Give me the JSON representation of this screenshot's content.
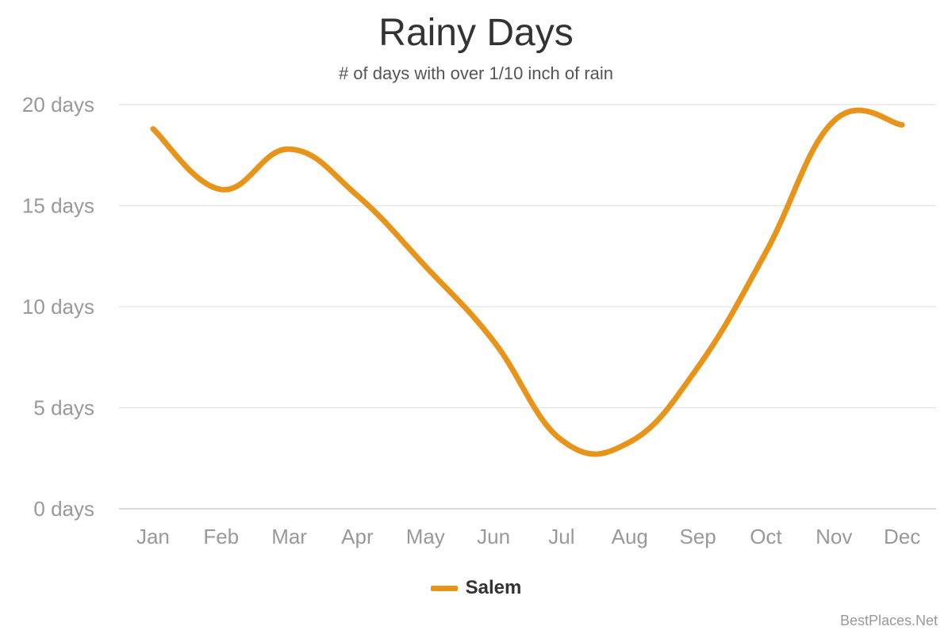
{
  "chart_data": {
    "type": "line",
    "title": "Rainy Days",
    "subtitle": "# of days with over 1/10 inch of rain",
    "categories": [
      "Jan",
      "Feb",
      "Mar",
      "Apr",
      "May",
      "Jun",
      "Jul",
      "Aug",
      "Sep",
      "Oct",
      "Nov",
      "Dec"
    ],
    "series": [
      {
        "name": "Salem",
        "color": "#E8941A",
        "values": [
          18.8,
          15.8,
          17.8,
          15.5,
          12.0,
          8.3,
          3.4,
          3.3,
          7.0,
          12.7,
          19.2,
          19.0
        ]
      }
    ],
    "y_ticks": [
      0,
      5,
      10,
      15,
      20
    ],
    "y_tick_labels": [
      "0 days",
      "5 days",
      "10 days",
      "15 days",
      "20 days"
    ],
    "ylim": [
      0,
      20
    ],
    "grid": true,
    "legend_position": "bottom-center"
  },
  "watermark": "BestPlaces.Net"
}
